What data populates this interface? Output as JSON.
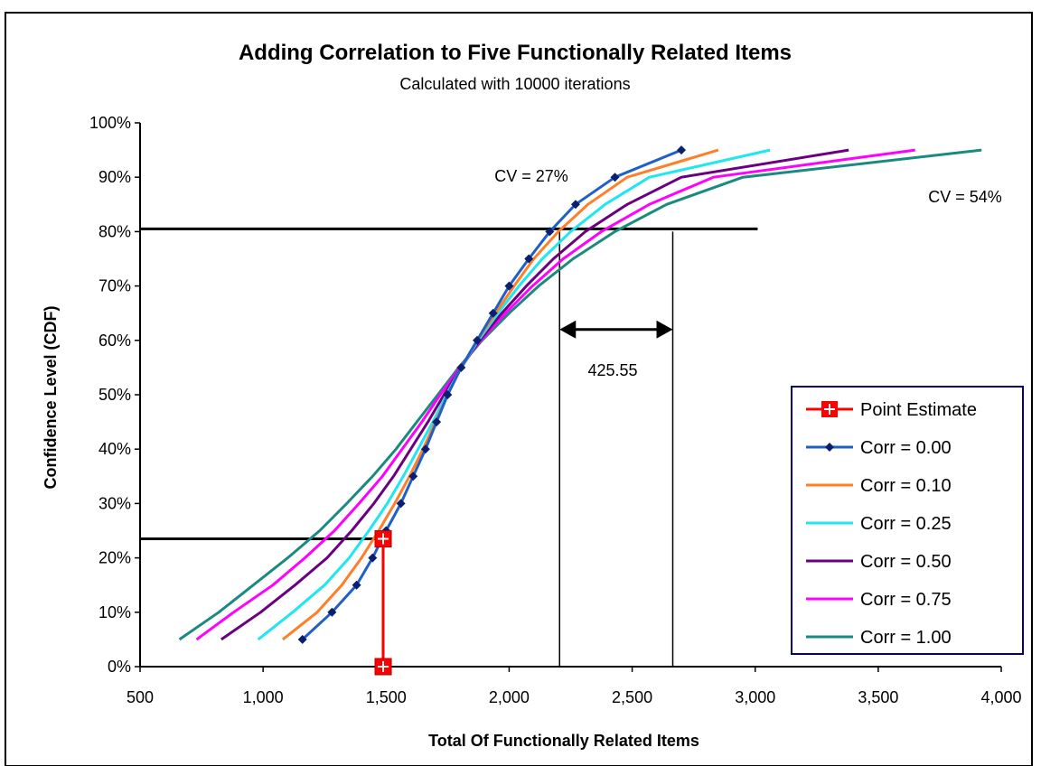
{
  "chart_data": {
    "type": "line",
    "title": "Adding Correlation to Five Functionally Related Items",
    "subtitle": "Calculated with 10000 iterations",
    "xlabel": "Total Of Functionally Related Items",
    "ylabel": "Confidence Level (CDF)",
    "xlim": [
      500,
      4000
    ],
    "ylim": [
      0,
      1
    ],
    "x_ticks": [
      500,
      1000,
      1500,
      2000,
      2500,
      3000,
      3500,
      4000
    ],
    "x_tick_labels": [
      "500",
      "1,000",
      "1,500",
      "2,000",
      "2,500",
      "3,000",
      "3,500",
      "4,000"
    ],
    "y_ticks": [
      0,
      0.1,
      0.2,
      0.3,
      0.4,
      0.5,
      0.6,
      0.7,
      0.8,
      0.9,
      1.0
    ],
    "y_tick_labels": [
      "0%",
      "10%",
      "20%",
      "30%",
      "40%",
      "50%",
      "60%",
      "70%",
      "80%",
      "90%",
      "100%"
    ],
    "grid": false,
    "legend_position": "bottom-right",
    "series": [
      {
        "name": "Point Estimate",
        "color": "#ff0000",
        "marker": "square",
        "points": [
          [
            1488,
            0.0
          ],
          [
            1488,
            0.235
          ]
        ]
      },
      {
        "name": "Corr = 0.00",
        "color": "#1f5fc8",
        "marker": "diamond",
        "points": [
          [
            1160,
            0.05
          ],
          [
            1280,
            0.1
          ],
          [
            1380,
            0.15
          ],
          [
            1445,
            0.2
          ],
          [
            1500,
            0.25
          ],
          [
            1560,
            0.3
          ],
          [
            1610,
            0.35
          ],
          [
            1660,
            0.4
          ],
          [
            1705,
            0.45
          ],
          [
            1750,
            0.5
          ],
          [
            1805,
            0.55
          ],
          [
            1870,
            0.6
          ],
          [
            1935,
            0.65
          ],
          [
            2000,
            0.7
          ],
          [
            2080,
            0.75
          ],
          [
            2165,
            0.8
          ],
          [
            2270,
            0.85
          ],
          [
            2430,
            0.9
          ],
          [
            2700,
            0.95
          ]
        ]
      },
      {
        "name": "Corr = 0.10",
        "color": "#ff7f27",
        "marker": "none",
        "points": [
          [
            1080,
            0.05
          ],
          [
            1220,
            0.1
          ],
          [
            1320,
            0.15
          ],
          [
            1400,
            0.2
          ],
          [
            1470,
            0.25
          ],
          [
            1535,
            0.3
          ],
          [
            1595,
            0.35
          ],
          [
            1650,
            0.4
          ],
          [
            1700,
            0.45
          ],
          [
            1750,
            0.5
          ],
          [
            1805,
            0.55
          ],
          [
            1870,
            0.6
          ],
          [
            1945,
            0.65
          ],
          [
            2020,
            0.7
          ],
          [
            2100,
            0.75
          ],
          [
            2200,
            0.8
          ],
          [
            2320,
            0.85
          ],
          [
            2480,
            0.9
          ],
          [
            2850,
            0.95
          ]
        ]
      },
      {
        "name": "Corr = 0.25",
        "color": "#1fe6f0",
        "marker": "none",
        "points": [
          [
            980,
            0.05
          ],
          [
            1120,
            0.1
          ],
          [
            1250,
            0.15
          ],
          [
            1350,
            0.2
          ],
          [
            1430,
            0.25
          ],
          [
            1505,
            0.3
          ],
          [
            1570,
            0.35
          ],
          [
            1630,
            0.4
          ],
          [
            1690,
            0.45
          ],
          [
            1745,
            0.5
          ],
          [
            1805,
            0.55
          ],
          [
            1875,
            0.6
          ],
          [
            1955,
            0.65
          ],
          [
            2040,
            0.7
          ],
          [
            2135,
            0.75
          ],
          [
            2250,
            0.8
          ],
          [
            2390,
            0.85
          ],
          [
            2570,
            0.9
          ],
          [
            3060,
            0.95
          ]
        ]
      },
      {
        "name": "Corr = 0.50",
        "color": "#6a0080",
        "marker": "none",
        "points": [
          [
            830,
            0.05
          ],
          [
            990,
            0.1
          ],
          [
            1130,
            0.15
          ],
          [
            1260,
            0.2
          ],
          [
            1360,
            0.25
          ],
          [
            1450,
            0.3
          ],
          [
            1530,
            0.35
          ],
          [
            1600,
            0.4
          ],
          [
            1670,
            0.45
          ],
          [
            1735,
            0.5
          ],
          [
            1805,
            0.55
          ],
          [
            1880,
            0.6
          ],
          [
            1970,
            0.65
          ],
          [
            2070,
            0.7
          ],
          [
            2180,
            0.75
          ],
          [
            2310,
            0.8
          ],
          [
            2480,
            0.85
          ],
          [
            2700,
            0.9
          ],
          [
            3380,
            0.95
          ]
        ]
      },
      {
        "name": "Corr = 0.75",
        "color": "#ff00ff",
        "marker": "none",
        "points": [
          [
            730,
            0.05
          ],
          [
            880,
            0.1
          ],
          [
            1040,
            0.15
          ],
          [
            1170,
            0.2
          ],
          [
            1290,
            0.25
          ],
          [
            1390,
            0.3
          ],
          [
            1485,
            0.35
          ],
          [
            1565,
            0.4
          ],
          [
            1645,
            0.45
          ],
          [
            1720,
            0.5
          ],
          [
            1800,
            0.55
          ],
          [
            1885,
            0.6
          ],
          [
            1985,
            0.65
          ],
          [
            2095,
            0.7
          ],
          [
            2220,
            0.75
          ],
          [
            2375,
            0.8
          ],
          [
            2570,
            0.85
          ],
          [
            2830,
            0.9
          ],
          [
            3650,
            0.95
          ]
        ]
      },
      {
        "name": "Corr = 1.00",
        "color": "#1a8a80",
        "marker": "none",
        "points": [
          [
            660,
            0.05
          ],
          [
            820,
            0.1
          ],
          [
            960,
            0.15
          ],
          [
            1100,
            0.2
          ],
          [
            1230,
            0.25
          ],
          [
            1340,
            0.3
          ],
          [
            1445,
            0.35
          ],
          [
            1540,
            0.4
          ],
          [
            1625,
            0.45
          ],
          [
            1710,
            0.5
          ],
          [
            1795,
            0.55
          ],
          [
            1890,
            0.6
          ],
          [
            2000,
            0.65
          ],
          [
            2120,
            0.7
          ],
          [
            2260,
            0.75
          ],
          [
            2430,
            0.8
          ],
          [
            2640,
            0.85
          ],
          [
            2950,
            0.9
          ],
          [
            3920,
            0.95
          ]
        ]
      }
    ],
    "reference_lines": {
      "horizontal": [
        {
          "y": 0.805,
          "x_from": 500,
          "x_to": 3010
        },
        {
          "y": 0.235,
          "x_from": 500,
          "x_to": 1488
        }
      ],
      "vertical": [
        {
          "x": 2205,
          "y_from": 0,
          "y_to": 0.8
        },
        {
          "x": 2665,
          "y_from": 0,
          "y_to": 0.8
        }
      ],
      "arrow": {
        "x_from": 2205,
        "x_to": 2665,
        "y": 0.62
      }
    },
    "annotations": {
      "cv_low": "CV = 27%",
      "cv_high": "CV = 54%",
      "spread": "425.55"
    }
  }
}
